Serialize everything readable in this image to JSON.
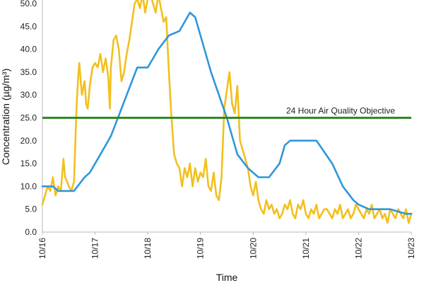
{
  "chart_data": {
    "type": "line",
    "title": "",
    "xlabel": "Time",
    "ylabel": "Concentration (µg/m³)",
    "ylim": [
      0,
      50
    ],
    "xlim": [
      "10/16",
      "10/23"
    ],
    "y_ticks": [
      "0.0",
      "5.0",
      "10.0",
      "15.0",
      "20.0",
      "25.0",
      "30.0",
      "35.0",
      "40.0",
      "45.0",
      "50.0"
    ],
    "x_ticks": [
      "10/16",
      "10/17",
      "10/18",
      "10/19",
      "10/20",
      "10/21",
      "10/22",
      "10/23"
    ],
    "grid": false,
    "legend": "none",
    "annotation": {
      "label": "24 Hour Air Quality Objective",
      "value": 25,
      "color": "#2e8b21"
    },
    "series": [
      {
        "color": "#f2c01e",
        "x": [
          16.0,
          16.05,
          16.1,
          16.15,
          16.2,
          16.25,
          16.3,
          16.35,
          16.4,
          16.43,
          16.47,
          16.5,
          16.55,
          16.6,
          16.65,
          16.68,
          16.7,
          16.75,
          16.8,
          16.83,
          16.86,
          16.9,
          16.95,
          17.0,
          17.05,
          17.1,
          17.15,
          17.2,
          17.25,
          17.28,
          17.3,
          17.35,
          17.4,
          17.45,
          17.5,
          17.55,
          17.6,
          17.65,
          17.7,
          17.75,
          17.8,
          17.85,
          17.9,
          17.95,
          17.98,
          18.0,
          18.05,
          18.1,
          18.15,
          18.2,
          18.25,
          18.3,
          18.35,
          18.4,
          18.45,
          18.5,
          18.55,
          18.6,
          18.65,
          18.7,
          18.75,
          18.8,
          18.85,
          18.9,
          18.95,
          19.0,
          19.05,
          19.1,
          19.15,
          19.2,
          19.25,
          19.3,
          19.35,
          19.4,
          19.45,
          19.5,
          19.55,
          19.6,
          19.65,
          19.7,
          19.75,
          19.8,
          19.85,
          19.9,
          19.95,
          20.0,
          20.05,
          20.1,
          20.15,
          20.2,
          20.25,
          20.3,
          20.35,
          20.4,
          20.45,
          20.5,
          20.55,
          20.6,
          20.65,
          20.7,
          20.75,
          20.8,
          20.85,
          20.9,
          20.95,
          21.0,
          21.05,
          21.1,
          21.15,
          21.2,
          21.25,
          21.3,
          21.35,
          21.4,
          21.45,
          21.5,
          21.55,
          21.6,
          21.65,
          21.7,
          21.75,
          21.8,
          21.85,
          21.9,
          21.95,
          22.0,
          22.05,
          22.1,
          22.15,
          22.2,
          22.25,
          22.3,
          22.35,
          22.4,
          22.45,
          22.5,
          22.55,
          22.6,
          22.65,
          22.7,
          22.75,
          22.8,
          22.85,
          22.9,
          22.95,
          23.0
        ],
        "y": [
          6,
          8,
          10,
          9,
          12,
          8,
          10,
          9,
          16,
          12,
          11,
          10,
          9,
          11,
          28,
          34,
          37,
          30,
          33,
          28,
          27,
          32,
          36,
          37,
          36,
          39,
          35,
          38,
          34,
          27,
          36,
          42,
          43,
          40,
          33,
          35,
          39,
          42,
          46,
          50,
          51,
          49,
          52,
          48,
          50,
          51,
          52,
          50,
          48,
          52,
          49,
          46,
          47,
          35,
          25,
          17,
          15,
          14,
          10,
          14,
          12,
          15,
          10,
          14,
          11,
          13,
          12,
          16,
          10,
          9,
          13,
          8,
          7,
          12,
          27,
          31,
          35,
          28,
          26,
          32,
          20,
          18,
          16,
          14,
          10,
          8,
          11,
          7,
          5,
          4,
          7,
          5,
          6,
          4,
          5,
          3,
          4,
          6,
          5,
          7,
          4,
          3,
          6,
          5,
          7,
          4,
          3,
          5,
          4,
          6,
          3,
          4,
          5,
          5,
          4,
          3,
          5,
          4,
          6,
          3,
          4,
          5,
          3,
          4,
          6,
          5,
          4,
          3,
          5,
          4,
          6,
          3,
          4,
          5,
          3,
          4,
          2,
          5,
          4,
          3,
          5,
          4,
          3,
          5,
          2,
          4
        ],
        "values_note": ""
      },
      {
        "color": "#2f97d9",
        "x": [
          16.0,
          16.2,
          16.3,
          16.6,
          16.8,
          16.9,
          17.0,
          17.2,
          17.3,
          17.5,
          17.6,
          17.8,
          18.0,
          18.2,
          18.4,
          18.6,
          18.8,
          18.9,
          19.0,
          19.2,
          19.5,
          19.7,
          19.9,
          20.1,
          20.3,
          20.5,
          20.6,
          20.7,
          21.0,
          21.2,
          21.5,
          21.7,
          21.9,
          22.0,
          22.2,
          22.4,
          22.6,
          22.9,
          23.0
        ],
        "y": [
          10,
          10,
          9,
          9,
          12,
          13,
          15,
          19,
          21,
          27,
          30,
          36,
          36,
          40,
          43,
          44,
          48,
          47,
          43,
          35,
          25,
          17,
          14,
          12,
          12,
          15,
          19,
          20,
          20,
          20,
          15,
          10,
          7,
          6,
          5,
          5,
          5,
          4,
          4
        ]
      }
    ]
  }
}
